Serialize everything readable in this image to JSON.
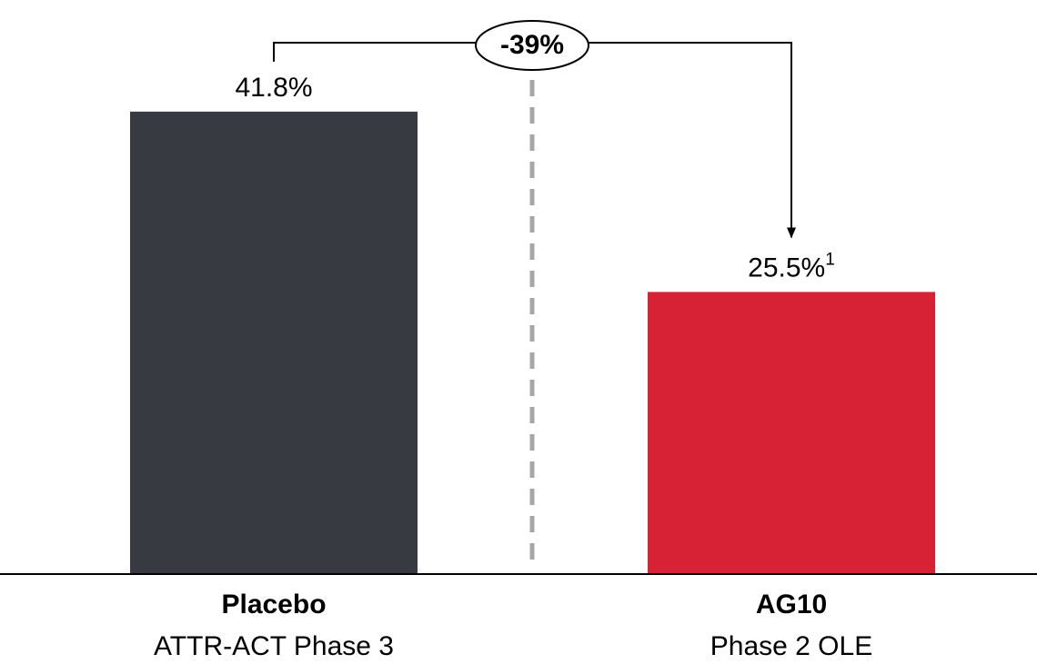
{
  "chart_data": {
    "type": "bar",
    "categories": [
      "Placebo",
      "AG10"
    ],
    "category_subtitles": [
      "ATTR-ACT Phase 3",
      "Phase 2 OLE"
    ],
    "values": [
      41.8,
      25.5
    ],
    "value_labels": [
      "41.8%",
      "25.5%"
    ],
    "value_label_notes": [
      null,
      "1"
    ],
    "colors": [
      "#373a41",
      "#d72236"
    ],
    "annotation": "-39%"
  }
}
